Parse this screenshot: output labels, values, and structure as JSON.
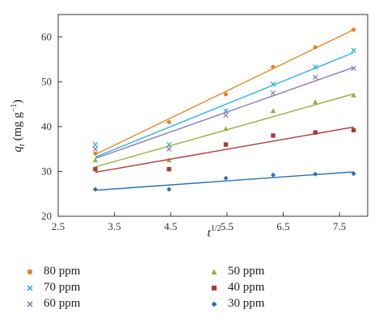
{
  "chart_data": {
    "type": "scatter",
    "xlabel_base": "t",
    "xlabel_sup": "1/2",
    "ylabel_base": "q",
    "ylabel_sub": "t",
    "ylabel_unit": "(mg g",
    "ylabel_unit_sup": "−1",
    "ylabel_unit_end": ")",
    "xlim": [
      2.5,
      8.0
    ],
    "ylim": [
      20,
      65
    ],
    "xticks": [
      2.5,
      3.5,
      4.5,
      5.5,
      6.5,
      7.5
    ],
    "xtick_labels": [
      "2.5",
      "3.5",
      "4.5",
      "5.5",
      "6.5",
      "7.5"
    ],
    "yticks": [
      20,
      30,
      40,
      50,
      60
    ],
    "ytick_labels": [
      "20",
      "30",
      "40",
      "50",
      "60"
    ],
    "grid": false,
    "series": [
      {
        "name": "80 ppm",
        "marker": "circle",
        "color": "#e0862a",
        "x": [
          3.16,
          4.47,
          5.48,
          6.32,
          7.07,
          7.75
        ],
        "y": [
          34.0,
          41.0,
          47.2,
          53.3,
          57.7,
          61.6
        ],
        "fit": [
          [
            3.16,
            33.8
          ],
          [
            7.75,
            61.6
          ]
        ]
      },
      {
        "name": "70 ppm",
        "marker": "x",
        "color": "#2bb3d6",
        "x": [
          3.16,
          4.47,
          5.48,
          6.32,
          7.07,
          7.75
        ],
        "y": [
          36.0,
          36.0,
          43.5,
          49.5,
          53.3,
          57.0
        ],
        "fit": [
          [
            3.16,
            33.2
          ],
          [
            7.75,
            56.5
          ]
        ]
      },
      {
        "name": "60 ppm",
        "marker": "x",
        "color": "#8c7bb8",
        "x": [
          3.16,
          4.47,
          5.48,
          6.32,
          7.07,
          7.75
        ],
        "y": [
          35.0,
          35.0,
          42.5,
          47.5,
          51.0,
          53.0
        ],
        "fit": [
          [
            3.16,
            32.9
          ],
          [
            7.75,
            53.2
          ]
        ]
      },
      {
        "name": "50 ppm",
        "marker": "triangle",
        "color": "#8fae3c",
        "x": [
          3.16,
          4.47,
          5.48,
          6.32,
          7.07,
          7.75
        ],
        "y": [
          32.5,
          32.5,
          39.5,
          43.5,
          45.5,
          47.0
        ],
        "fit": [
          [
            3.16,
            31.0
          ],
          [
            7.75,
            47.3
          ]
        ]
      },
      {
        "name": "40 ppm",
        "marker": "square",
        "color": "#a93b35",
        "x": [
          3.16,
          4.47,
          5.48,
          6.32,
          7.07,
          7.75
        ],
        "y": [
          30.5,
          30.5,
          36.0,
          38.0,
          38.7,
          39.2
        ],
        "fit": [
          [
            3.16,
            29.8
          ],
          [
            7.75,
            39.9
          ]
        ]
      },
      {
        "name": "30 ppm",
        "marker": "diamond",
        "color": "#2f6fb0",
        "x": [
          3.16,
          4.47,
          5.48,
          6.32,
          7.07,
          7.75
        ],
        "y": [
          26.0,
          26.0,
          28.5,
          29.2,
          29.4,
          29.5
        ],
        "fit": [
          [
            3.16,
            25.8
          ],
          [
            7.75,
            29.9
          ]
        ]
      }
    ]
  },
  "legend": {
    "items": [
      "80 ppm",
      "50 ppm",
      "70 ppm",
      "40 ppm",
      "60 ppm",
      "30 ppm"
    ]
  }
}
